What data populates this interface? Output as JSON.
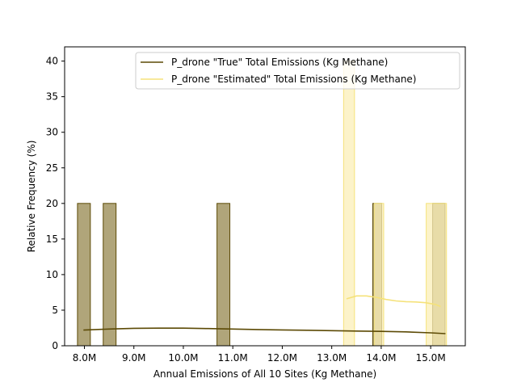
{
  "chart_data": {
    "type": "bar",
    "title": "",
    "xlabel": "Annual Emissions of All 10 Sites (Kg Methane)",
    "ylabel": "Relative Frequency (%)",
    "xlim": [
      7.6,
      15.7
    ],
    "ylim": [
      0,
      42
    ],
    "x_unit": "M Kg Methane",
    "x_ticks": [
      {
        "value": 8.0,
        "label": "8.0M"
      },
      {
        "value": 9.0,
        "label": "9.0M"
      },
      {
        "value": 10.0,
        "label": "10.0M"
      },
      {
        "value": 11.0,
        "label": "11.0M"
      },
      {
        "value": 12.0,
        "label": "12.0M"
      },
      {
        "value": 13.0,
        "label": "13.0M"
      },
      {
        "value": 14.0,
        "label": "14.0M"
      },
      {
        "value": 15.0,
        "label": "15.0M"
      }
    ],
    "y_ticks": [
      0,
      5,
      10,
      15,
      20,
      25,
      30,
      35,
      40
    ],
    "grid": false,
    "legend_position": "upper right",
    "series": [
      {
        "name": "P_drone \"True\" Total Emissions (Kg Methane)",
        "color": "#5c4a05",
        "fill": "#b0a57a",
        "bars": [
          {
            "x0": 7.86,
            "x1": 8.12,
            "value": 20
          },
          {
            "x0": 8.38,
            "x1": 8.64,
            "value": 20
          },
          {
            "x0": 10.68,
            "x1": 10.94,
            "value": 20
          },
          {
            "x0": 13.83,
            "x1": 14.01,
            "value": 20
          },
          {
            "x0": 15.04,
            "x1": 15.29,
            "value": 20
          }
        ],
        "kde": {
          "x": [
            7.98,
            8.5,
            9.0,
            9.5,
            10.0,
            10.5,
            11.0,
            11.5,
            12.0,
            12.5,
            13.0,
            13.5,
            14.0,
            14.5,
            15.0,
            15.3
          ],
          "y": [
            2.2,
            2.35,
            2.45,
            2.48,
            2.47,
            2.42,
            2.35,
            2.28,
            2.22,
            2.18,
            2.12,
            2.07,
            2.02,
            1.95,
            1.82,
            1.7
          ]
        }
      },
      {
        "name": "P_drone \"Estimated\" Total Emissions (Kg Methane)",
        "color": "#f5e27a",
        "fill": "#fbefb8",
        "bars": [
          {
            "x0": 13.24,
            "x1": 13.46,
            "value": 40
          },
          {
            "x0": 13.86,
            "x1": 14.05,
            "value": 20
          },
          {
            "x0": 14.91,
            "x1": 15.32,
            "value": 20
          }
        ],
        "kde": {
          "x": [
            13.3,
            13.5,
            13.7,
            13.9,
            14.1,
            14.3,
            14.5,
            14.7,
            14.9,
            15.1,
            15.2
          ],
          "y": [
            6.6,
            7.0,
            7.0,
            6.8,
            6.5,
            6.3,
            6.2,
            6.15,
            6.05,
            5.8,
            5.5
          ]
        }
      }
    ]
  }
}
